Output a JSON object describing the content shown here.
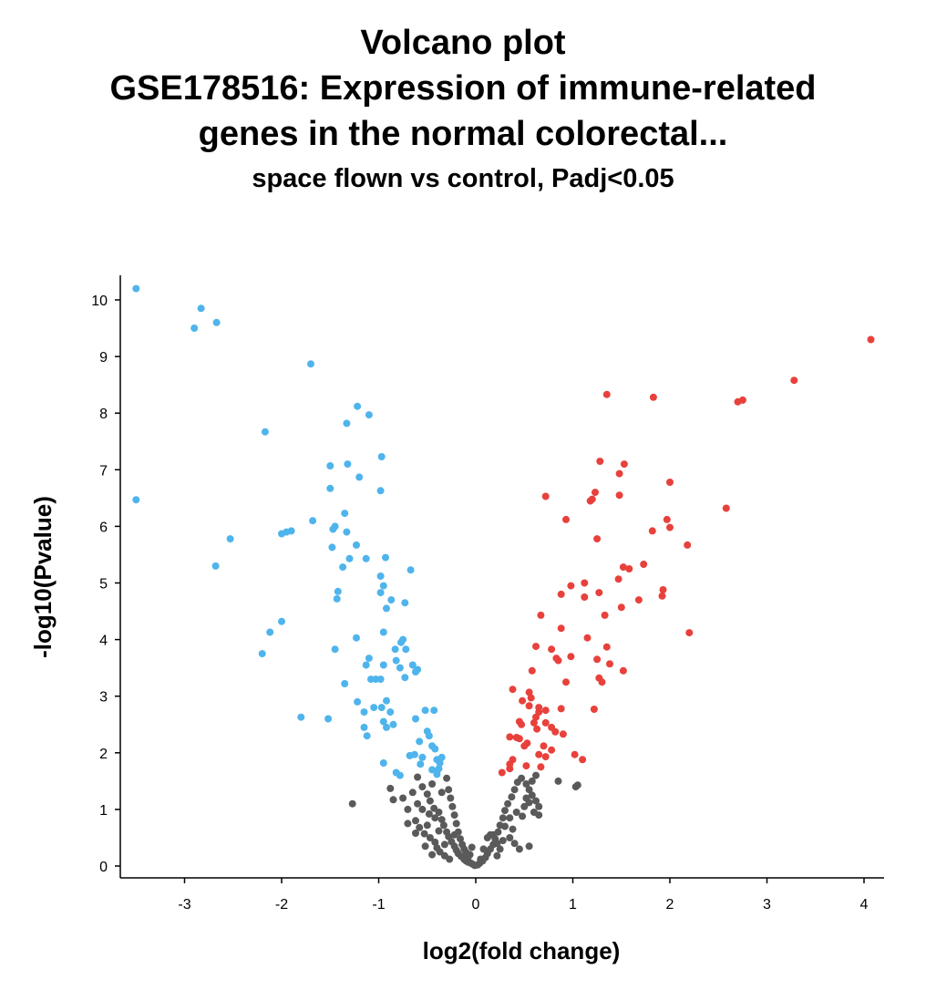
{
  "title": {
    "line1": "Volcano plot",
    "line2": "GSE178516: Expression of immune-related",
    "line3": "genes in the normal colorectal...",
    "subtitle": "space flown vs control, Padj<0.05"
  },
  "colors": {
    "up": "#e8413c",
    "down": "#4fb4ec",
    "ns": "#5a5a5a",
    "axis": "#000000"
  },
  "chart_data": {
    "type": "scatter",
    "xlabel": "log2(fold change)",
    "ylabel": "-log10(Pvalue)",
    "xlim": [
      -3.65,
      4.2
    ],
    "ylim": [
      -0.2,
      10.4
    ],
    "xticks": [
      -3,
      -2,
      -1,
      0,
      1,
      2,
      3,
      4
    ],
    "yticks": [
      0,
      1,
      2,
      3,
      4,
      5,
      6,
      7,
      8,
      9,
      10
    ],
    "grid": false,
    "series": [
      {
        "group": "down",
        "points": [
          [
            -3.5,
            10.2
          ],
          [
            -2.83,
            9.85
          ],
          [
            -2.9,
            9.5
          ],
          [
            -2.67,
            9.6
          ],
          [
            -1.7,
            8.87
          ],
          [
            -3.5,
            6.47
          ],
          [
            -1.22,
            8.12
          ],
          [
            -1.1,
            7.97
          ],
          [
            -1.33,
            7.82
          ],
          [
            -2.17,
            7.67
          ],
          [
            -0.97,
            7.23
          ],
          [
            -1.5,
            7.07
          ],
          [
            -1.32,
            7.1
          ],
          [
            -1.2,
            6.87
          ],
          [
            -1.5,
            6.67
          ],
          [
            -0.98,
            6.63
          ],
          [
            -1.35,
            6.23
          ],
          [
            -1.68,
            6.1
          ],
          [
            -1.45,
            6.0
          ],
          [
            -1.47,
            5.95
          ],
          [
            -1.33,
            5.9
          ],
          [
            -1.9,
            5.92
          ],
          [
            -1.95,
            5.9
          ],
          [
            -2.0,
            5.87
          ],
          [
            -2.53,
            5.78
          ],
          [
            -1.23,
            5.67
          ],
          [
            -1.48,
            5.63
          ],
          [
            -1.13,
            5.43
          ],
          [
            -1.3,
            5.43
          ],
          [
            -0.93,
            5.45
          ],
          [
            -1.37,
            5.28
          ],
          [
            -2.68,
            5.3
          ],
          [
            -0.67,
            5.23
          ],
          [
            -0.98,
            5.12
          ],
          [
            -0.95,
            4.95
          ],
          [
            -1.42,
            4.85
          ],
          [
            -1.43,
            4.72
          ],
          [
            -0.98,
            4.83
          ],
          [
            -0.73,
            4.65
          ],
          [
            -0.87,
            4.7
          ],
          [
            -0.92,
            4.55
          ],
          [
            -2.0,
            4.32
          ],
          [
            -2.12,
            4.13
          ],
          [
            -0.95,
            4.13
          ],
          [
            -1.23,
            4.03
          ],
          [
            -0.75,
            4.0
          ],
          [
            -0.77,
            3.95
          ],
          [
            -2.2,
            3.75
          ],
          [
            -1.45,
            3.83
          ],
          [
            -0.83,
            3.83
          ],
          [
            -0.72,
            3.83
          ],
          [
            -1.1,
            3.67
          ],
          [
            -0.82,
            3.63
          ],
          [
            -0.65,
            3.55
          ],
          [
            -1.13,
            3.55
          ],
          [
            -0.6,
            3.47
          ],
          [
            -0.62,
            3.43
          ],
          [
            -0.78,
            3.5
          ],
          [
            -0.95,
            3.55
          ],
          [
            -0.73,
            3.33
          ],
          [
            -1.08,
            3.3
          ],
          [
            -1.03,
            3.3
          ],
          [
            -0.98,
            3.3
          ],
          [
            -1.35,
            3.22
          ],
          [
            -0.92,
            2.92
          ],
          [
            -1.22,
            2.9
          ],
          [
            -1.15,
            2.72
          ],
          [
            -1.05,
            2.8
          ],
          [
            -0.97,
            2.8
          ],
          [
            -0.88,
            2.72
          ],
          [
            -0.52,
            2.75
          ],
          [
            -0.43,
            2.75
          ],
          [
            -0.62,
            2.6
          ],
          [
            -1.8,
            2.63
          ],
          [
            -1.52,
            2.6
          ],
          [
            -0.95,
            2.55
          ],
          [
            -0.85,
            2.5
          ],
          [
            -0.92,
            2.45
          ],
          [
            -1.15,
            2.45
          ],
          [
            -1.12,
            2.3
          ],
          [
            -0.5,
            2.38
          ],
          [
            -0.48,
            2.3
          ],
          [
            -0.58,
            2.2
          ],
          [
            -0.45,
            2.12
          ],
          [
            -0.42,
            2.07
          ],
          [
            -0.63,
            1.97
          ],
          [
            -0.68,
            1.95
          ],
          [
            -0.55,
            1.92
          ],
          [
            -0.35,
            1.92
          ],
          [
            -0.4,
            1.88
          ],
          [
            -0.57,
            1.8
          ],
          [
            -0.37,
            1.82
          ],
          [
            -0.38,
            1.72
          ],
          [
            -0.45,
            1.7
          ],
          [
            -0.4,
            1.67
          ],
          [
            -0.82,
            1.65
          ],
          [
            -0.4,
            1.62
          ],
          [
            -0.95,
            1.82
          ],
          [
            -0.78,
            1.6
          ]
        ]
      },
      {
        "group": "up",
        "points": [
          [
            4.07,
            9.3
          ],
          [
            3.28,
            8.58
          ],
          [
            2.75,
            8.23
          ],
          [
            2.7,
            8.2
          ],
          [
            1.35,
            8.33
          ],
          [
            1.83,
            8.28
          ],
          [
            1.28,
            7.15
          ],
          [
            1.53,
            7.1
          ],
          [
            1.48,
            6.93
          ],
          [
            2.0,
            6.78
          ],
          [
            0.72,
            6.53
          ],
          [
            1.23,
            6.6
          ],
          [
            1.2,
            6.48
          ],
          [
            1.18,
            6.45
          ],
          [
            1.48,
            6.55
          ],
          [
            2.58,
            6.32
          ],
          [
            0.93,
            6.12
          ],
          [
            1.97,
            6.12
          ],
          [
            2.0,
            5.98
          ],
          [
            1.82,
            5.92
          ],
          [
            1.25,
            5.78
          ],
          [
            2.18,
            5.67
          ],
          [
            1.73,
            5.33
          ],
          [
            1.52,
            5.28
          ],
          [
            1.58,
            5.25
          ],
          [
            1.47,
            5.07
          ],
          [
            1.12,
            5.0
          ],
          [
            0.98,
            4.95
          ],
          [
            1.27,
            4.83
          ],
          [
            0.88,
            4.8
          ],
          [
            1.12,
            4.75
          ],
          [
            1.93,
            4.88
          ],
          [
            1.92,
            4.77
          ],
          [
            1.68,
            4.7
          ],
          [
            1.5,
            4.57
          ],
          [
            0.67,
            4.43
          ],
          [
            1.33,
            4.43
          ],
          [
            0.88,
            4.2
          ],
          [
            2.2,
            4.12
          ],
          [
            1.15,
            4.03
          ],
          [
            0.62,
            3.88
          ],
          [
            1.35,
            3.87
          ],
          [
            0.78,
            3.83
          ],
          [
            0.83,
            3.67
          ],
          [
            0.85,
            3.63
          ],
          [
            0.98,
            3.7
          ],
          [
            1.25,
            3.65
          ],
          [
            1.38,
            3.57
          ],
          [
            1.52,
            3.45
          ],
          [
            0.58,
            3.45
          ],
          [
            1.27,
            3.32
          ],
          [
            1.3,
            3.25
          ],
          [
            0.93,
            3.25
          ],
          [
            0.38,
            3.12
          ],
          [
            0.55,
            3.07
          ],
          [
            0.57,
            2.97
          ],
          [
            0.48,
            2.92
          ],
          [
            0.55,
            2.83
          ],
          [
            0.65,
            2.8
          ],
          [
            0.72,
            2.75
          ],
          [
            0.88,
            2.78
          ],
          [
            1.22,
            2.77
          ],
          [
            0.65,
            2.72
          ],
          [
            0.62,
            2.63
          ],
          [
            0.6,
            2.53
          ],
          [
            0.45,
            2.55
          ],
          [
            0.47,
            2.5
          ],
          [
            0.72,
            2.53
          ],
          [
            0.78,
            2.45
          ],
          [
            0.63,
            2.42
          ],
          [
            0.9,
            2.33
          ],
          [
            0.82,
            2.37
          ],
          [
            0.35,
            2.28
          ],
          [
            0.42,
            2.27
          ],
          [
            0.45,
            2.25
          ],
          [
            0.53,
            2.17
          ],
          [
            0.5,
            2.12
          ],
          [
            0.7,
            2.12
          ],
          [
            0.78,
            2.05
          ],
          [
            0.65,
            1.97
          ],
          [
            0.72,
            1.93
          ],
          [
            1.02,
            1.97
          ],
          [
            1.1,
            1.88
          ],
          [
            0.38,
            1.88
          ],
          [
            0.35,
            1.8
          ],
          [
            0.52,
            1.77
          ],
          [
            0.67,
            1.75
          ],
          [
            0.35,
            1.72
          ],
          [
            0.27,
            1.65
          ]
        ]
      },
      {
        "group": "ns",
        "points": [
          [
            -1.27,
            1.1
          ],
          [
            -0.88,
            1.37
          ],
          [
            -0.85,
            1.17
          ],
          [
            -0.75,
            1.2
          ],
          [
            -0.7,
            1.0
          ],
          [
            -0.6,
            1.57
          ],
          [
            -0.55,
            1.4
          ],
          [
            -0.5,
            1.27
          ],
          [
            -0.47,
            1.15
          ],
          [
            -0.43,
            1.02
          ],
          [
            -0.38,
            0.95
          ],
          [
            -0.35,
            0.82
          ],
          [
            -0.33,
            0.72
          ],
          [
            -0.3,
            0.6
          ],
          [
            -0.28,
            0.52
          ],
          [
            -0.25,
            0.43
          ],
          [
            -0.22,
            0.35
          ],
          [
            -0.2,
            0.28
          ],
          [
            -0.18,
            0.22
          ],
          [
            -0.15,
            0.17
          ],
          [
            -0.12,
            0.12
          ],
          [
            -0.1,
            0.09
          ],
          [
            -0.08,
            0.07
          ],
          [
            -0.05,
            0.05
          ],
          [
            -0.03,
            0.03
          ],
          [
            -0.01,
            0.01
          ],
          [
            -0.62,
            0.8
          ],
          [
            -0.58,
            0.68
          ],
          [
            -0.53,
            0.57
          ],
          [
            -0.47,
            0.5
          ],
          [
            -0.42,
            0.42
          ],
          [
            -0.4,
            0.32
          ],
          [
            -0.37,
            0.25
          ],
          [
            -0.32,
            0.18
          ],
          [
            -0.27,
            0.12
          ],
          [
            -0.6,
            1.1
          ],
          [
            -0.55,
            1.0
          ],
          [
            -0.48,
            0.92
          ],
          [
            -0.42,
            0.85
          ],
          [
            -0.3,
            1.55
          ],
          [
            -0.28,
            1.35
          ],
          [
            -0.26,
            1.2
          ],
          [
            -0.24,
            1.05
          ],
          [
            -0.22,
            0.9
          ],
          [
            -0.2,
            0.75
          ],
          [
            -0.18,
            0.6
          ],
          [
            -0.16,
            0.48
          ],
          [
            -0.14,
            0.38
          ],
          [
            -0.12,
            0.3
          ],
          [
            -0.1,
            0.24
          ],
          [
            -0.35,
            1.3
          ],
          [
            -0.45,
            1.45
          ],
          [
            -0.65,
            1.3
          ],
          [
            -0.7,
            0.75
          ],
          [
            -0.62,
            0.58
          ],
          [
            -0.5,
            0.72
          ],
          [
            -0.38,
            0.62
          ],
          [
            -0.32,
            0.38
          ],
          [
            -0.22,
            0.55
          ],
          [
            -0.08,
            0.15
          ],
          [
            -0.06,
            0.2
          ],
          [
            0.02,
            0.02
          ],
          [
            0.04,
            0.05
          ],
          [
            0.07,
            0.09
          ],
          [
            0.1,
            0.15
          ],
          [
            0.12,
            0.22
          ],
          [
            0.15,
            0.3
          ],
          [
            0.18,
            0.38
          ],
          [
            0.2,
            0.48
          ],
          [
            0.23,
            0.6
          ],
          [
            0.25,
            0.72
          ],
          [
            0.28,
            0.85
          ],
          [
            0.3,
            0.98
          ],
          [
            0.33,
            1.1
          ],
          [
            0.37,
            1.22
          ],
          [
            0.4,
            1.35
          ],
          [
            0.43,
            1.48
          ],
          [
            0.47,
            1.55
          ],
          [
            0.52,
            1.45
          ],
          [
            0.55,
            1.35
          ],
          [
            0.58,
            1.25
          ],
          [
            0.62,
            1.15
          ],
          [
            0.65,
            1.05
          ],
          [
            0.12,
            0.5
          ],
          [
            0.18,
            0.55
          ],
          [
            0.22,
            0.4
          ],
          [
            0.28,
            0.45
          ],
          [
            0.35,
            0.5
          ],
          [
            0.4,
            0.4
          ],
          [
            0.45,
            0.3
          ],
          [
            0.35,
            0.85
          ],
          [
            0.42,
            0.95
          ],
          [
            0.5,
            1.05
          ],
          [
            0.55,
            1.12
          ],
          [
            0.6,
            0.95
          ],
          [
            0.65,
            0.9
          ],
          [
            0.3,
            0.7
          ],
          [
            0.25,
            0.3
          ],
          [
            0.38,
            0.65
          ],
          [
            0.48,
            0.88
          ],
          [
            0.52,
            1.2
          ],
          [
            0.58,
            1.5
          ],
          [
            0.62,
            1.6
          ],
          [
            0.85,
            1.5
          ],
          [
            1.03,
            1.4
          ],
          [
            1.05,
            1.43
          ],
          [
            0.08,
            0.3
          ],
          [
            0.05,
            0.12
          ],
          [
            -0.04,
            0.33
          ],
          [
            -0.45,
            0.2
          ],
          [
            -0.52,
            0.35
          ],
          [
            0.55,
            0.35
          ],
          [
            0.22,
            0.18
          ],
          [
            0.15,
            0.55
          ]
        ]
      }
    ]
  }
}
